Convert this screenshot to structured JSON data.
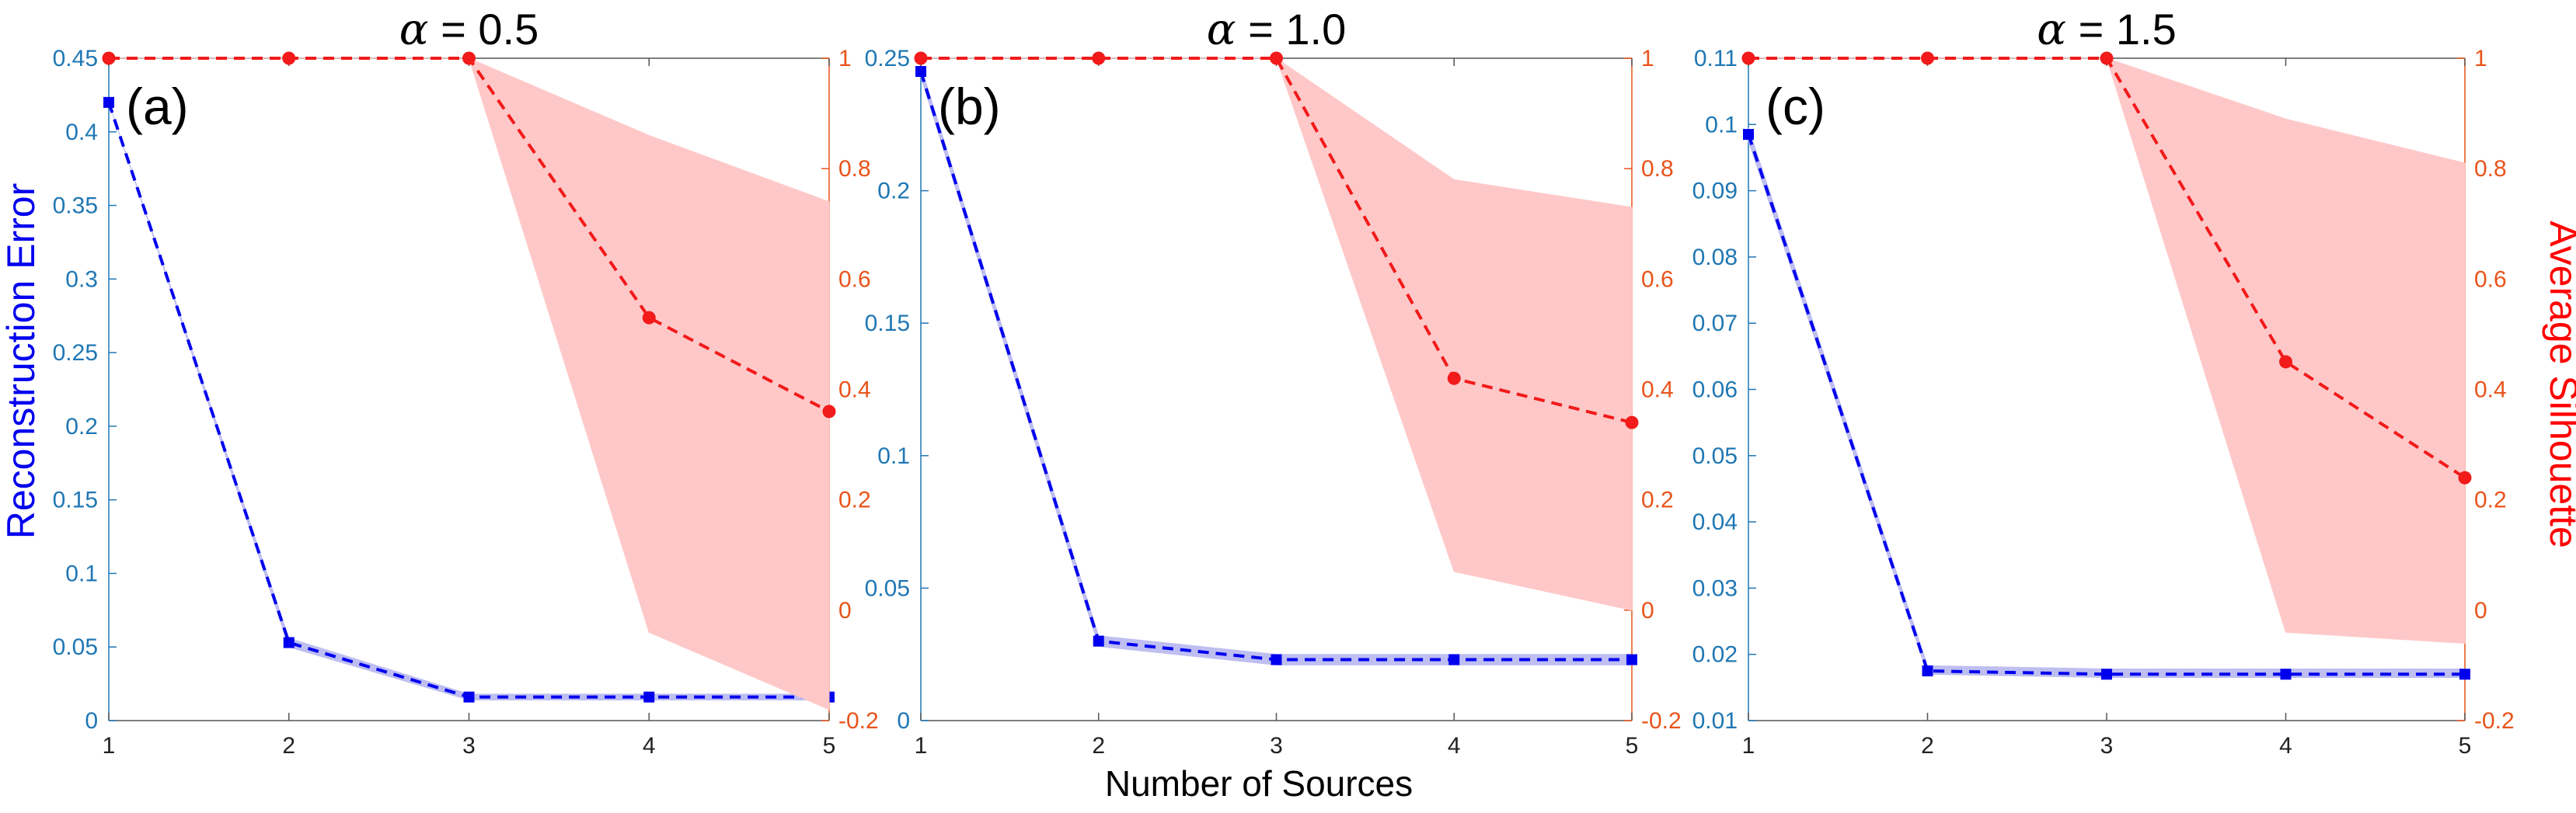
{
  "figure": {
    "shared_xlabel": "Number of Sources",
    "left_ylabel": "Reconstruction Error",
    "right_ylabel": "Average Silhouette"
  },
  "colors": {
    "error_line": "#0000ee",
    "error_band": "#b8b8f0",
    "silhouette_line": "#f21a1a",
    "silhouette_band": "#ffc8c8",
    "left_axis": "#1f77b4",
    "right_axis": "#e8541a",
    "axes_box": "#555555"
  },
  "chart_data": [
    {
      "type": "line",
      "title_symbol": "α",
      "title": " = 0.5",
      "panel_label": "(a)",
      "xlabel": "Number of Sources",
      "x": [
        1,
        2,
        3,
        4,
        5
      ],
      "x_ticks": [
        "1",
        "2",
        "3",
        "4",
        "5"
      ],
      "left_ylim": [
        0,
        0.45
      ],
      "left_ticks": [
        "0",
        "0.05",
        "0.1",
        "0.15",
        "0.2",
        "0.25",
        "0.3",
        "0.35",
        "0.4",
        "0.45"
      ],
      "right_ylim": [
        -0.2,
        1
      ],
      "right_ticks": [
        "-0.2",
        "0",
        "0.2",
        "0.4",
        "0.6",
        "0.8",
        "1"
      ],
      "series": [
        {
          "name": "Reconstruction Error",
          "axis": "left",
          "values": [
            0.42,
            0.053,
            0.016,
            0.016,
            0.016
          ],
          "band_low": [
            0.42,
            0.05,
            0.014,
            0.014,
            0.014
          ],
          "band_high": [
            0.42,
            0.056,
            0.018,
            0.018,
            0.018
          ]
        },
        {
          "name": "Average Silhouette",
          "axis": "right",
          "values": [
            1,
            1,
            1,
            0.53,
            0.36
          ],
          "band_low": [
            1,
            1,
            1,
            -0.04,
            -0.18
          ],
          "band_high": [
            1,
            1,
            1,
            0.86,
            0.74
          ]
        }
      ]
    },
    {
      "type": "line",
      "title_symbol": "α",
      "title": " = 1.0",
      "panel_label": "(b)",
      "xlabel": "Number of Sources",
      "x": [
        1,
        2,
        3,
        4,
        5
      ],
      "x_ticks": [
        "1",
        "2",
        "3",
        "4",
        "5"
      ],
      "left_ylim": [
        0,
        0.25
      ],
      "left_ticks": [
        "0",
        "0.05",
        "0.1",
        "0.15",
        "0.2",
        "0.25"
      ],
      "right_ylim": [
        -0.2,
        1
      ],
      "right_ticks": [
        "-0.2",
        "0",
        "0.2",
        "0.4",
        "0.6",
        "0.8",
        "1"
      ],
      "series": [
        {
          "name": "Reconstruction Error",
          "axis": "left",
          "values": [
            0.245,
            0.03,
            0.023,
            0.023,
            0.023
          ],
          "band_low": [
            0.243,
            0.028,
            0.021,
            0.021,
            0.021
          ],
          "band_high": [
            0.247,
            0.032,
            0.025,
            0.025,
            0.025
          ]
        },
        {
          "name": "Average Silhouette",
          "axis": "right",
          "values": [
            1,
            1,
            1,
            0.42,
            0.34
          ],
          "band_low": [
            1,
            1,
            1,
            0.07,
            0.0
          ],
          "band_high": [
            1,
            1,
            1,
            0.78,
            0.73
          ]
        }
      ]
    },
    {
      "type": "line",
      "title_symbol": "α",
      "title": " = 1.5",
      "panel_label": "(c)",
      "xlabel": "Number of Sources",
      "x": [
        1,
        2,
        3,
        4,
        5
      ],
      "x_ticks": [
        "1",
        "2",
        "3",
        "4",
        "5"
      ],
      "left_ylim": [
        0.01,
        0.11
      ],
      "left_ticks": [
        "0.01",
        "0.02",
        "0.03",
        "0.04",
        "0.05",
        "0.06",
        "0.07",
        "0.08",
        "0.09",
        "0.1",
        "0.11"
      ],
      "right_ylim": [
        -0.2,
        1
      ],
      "right_ticks": [
        "-0.2",
        "0",
        "0.2",
        "0.4",
        "0.6",
        "0.8",
        "1"
      ],
      "series": [
        {
          "name": "Reconstruction Error",
          "axis": "left",
          "values": [
            0.0985,
            0.0175,
            0.017,
            0.017,
            0.017
          ],
          "band_low": [
            0.0975,
            0.017,
            0.0165,
            0.0165,
            0.0165
          ],
          "band_high": [
            0.0995,
            0.0183,
            0.0178,
            0.0178,
            0.0178
          ]
        },
        {
          "name": "Average Silhouette",
          "axis": "right",
          "values": [
            1,
            1,
            1,
            0.45,
            0.24
          ],
          "band_low": [
            1,
            1,
            1,
            -0.04,
            -0.06
          ],
          "band_high": [
            1,
            1,
            1,
            0.89,
            0.81
          ]
        }
      ]
    }
  ]
}
